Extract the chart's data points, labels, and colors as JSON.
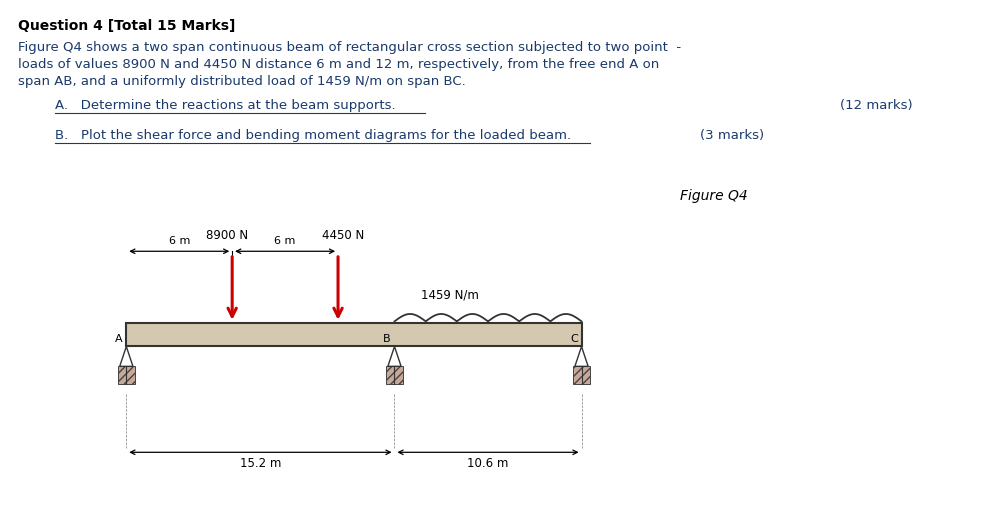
{
  "bg_color": "#ffffff",
  "text_color": "#000000",
  "blue_color": "#1a3a6b",
  "red_color": "#cc0000",
  "title": "Question 4 [Total 15 Marks]",
  "paragraph": "Figure Q4 shows a two span continuous beam of rectangular cross section subjected to two point  -\nloads of values 8900 N and 4450 N distance 6 m and 12 m, respectively, from the free end A on\nspan AB, and a uniformly distributed load of 1459 N/m on span BC.",
  "item_A": "A.   Determine the reactions at the beam supports.",
  "item_A_marks": "(12 marks)",
  "item_B": "B.   Plot the shear force and bending moment diagrams for the loaded beam.",
  "item_B_marks": "(3 marks)",
  "figure_label": "Figure Q4",
  "load1": "8900 N",
  "load2": "4450 N",
  "dist1": "6 m",
  "dist2": "6 m",
  "udl": "1459 N/m",
  "span_AB": "15.2 m",
  "span_BC": "10.6 m",
  "support_A": "A",
  "support_B": "B",
  "support_C": "C",
  "support_color": "#c8a898",
  "beam_color": "#d4c8b0",
  "beam_outline": "#333333",
  "underline_color": "#1a3a6b"
}
